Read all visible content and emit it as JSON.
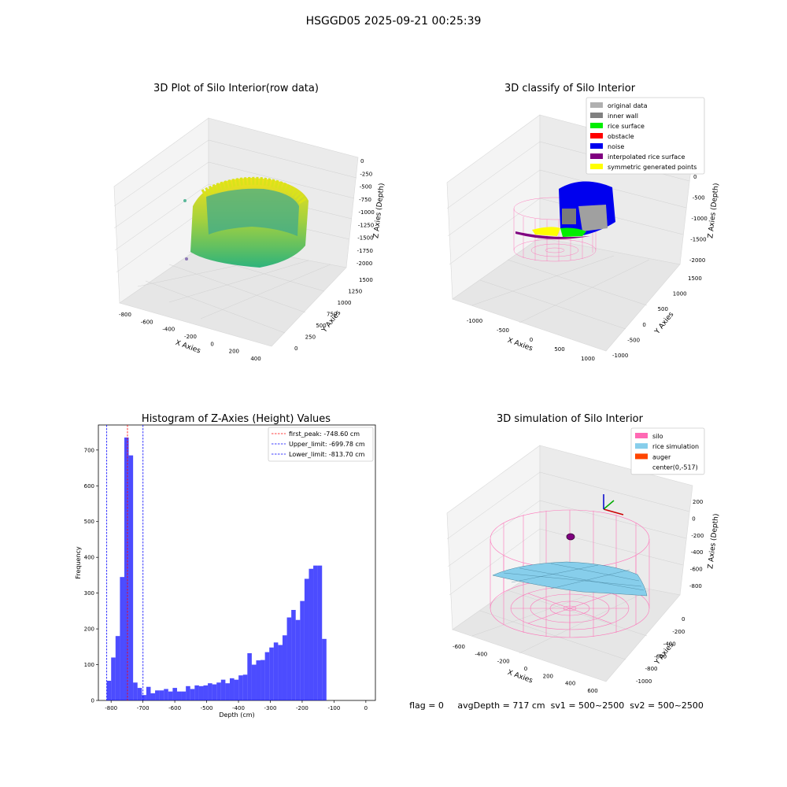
{
  "figure": {
    "suptitle": "HSGGD05 2025-09-21 00:25:39",
    "status_line": "flag = 0     avgDepth = 717 cm  sv1 = 500~2500  sv2 = 500~2500"
  },
  "panels": {
    "raw": {
      "title": "3D Plot of Silo Interior(row data)",
      "xlabel": "X Axies",
      "ylabel": "Y Axies",
      "zlabel": "Z Axies (Depth)",
      "xticks": [
        "-800",
        "-600",
        "-400",
        "-200",
        "0",
        "200",
        "400"
      ],
      "yticks": [
        "0",
        "250",
        "500",
        "750",
        "1000",
        "1250",
        "1500"
      ],
      "zticks": [
        "0",
        "-250",
        "-500",
        "-750",
        "-1000",
        "-1250",
        "-1500",
        "-1750",
        "-2000"
      ]
    },
    "classify": {
      "title": "3D classify of Silo Interior",
      "xlabel": "X Axies",
      "ylabel": "Y Axies",
      "zlabel": "Z Axies (Depth)",
      "xticks": [
        "-1000",
        "-500",
        "0",
        "500",
        "1000"
      ],
      "yticks": [
        "-1000",
        "-500",
        "0",
        "500",
        "1000",
        "1500"
      ],
      "zticks": [
        "0",
        "-500",
        "-1000",
        "-1500",
        "-2000"
      ],
      "legend": [
        {
          "label": "original data",
          "color": "#b0b0b0"
        },
        {
          "label": "inner wall",
          "color": "#808080"
        },
        {
          "label": "rice surface",
          "color": "#00ee00"
        },
        {
          "label": "obstacle",
          "color": "#ff0000"
        },
        {
          "label": "noise",
          "color": "#0000ee"
        },
        {
          "label": "interpolated rice surface",
          "color": "#800080"
        },
        {
          "label": "symmetric generated points",
          "color": "#ffff00"
        }
      ]
    },
    "simulation": {
      "title": "3D simulation of Silo Interior",
      "xlabel": "X Axies",
      "ylabel": "Y Axies",
      "zlabel": "Z Axies (Depth)",
      "xticks": [
        "-600",
        "-400",
        "-200",
        "0",
        "200",
        "400",
        "600"
      ],
      "yticks": [
        "-1000",
        "-800",
        "-600",
        "-400",
        "-200",
        "0"
      ],
      "zticks": [
        "200",
        "0",
        "-200",
        "-400",
        "-600",
        "-800"
      ],
      "legend": [
        {
          "label": "silo",
          "color": "#ff69b4"
        },
        {
          "label": "rice simulation",
          "color": "#87ceeb"
        },
        {
          "label": "auger",
          "color": "#ff4500"
        },
        {
          "label": "center(0,-517)",
          "color": ""
        }
      ]
    }
  },
  "chart_data": {
    "type": "bar",
    "title": "Histogram of Z-Axies (Height) Values",
    "xlabel": "Depth (cm)",
    "ylabel": "Frequency",
    "xlim": [
      -840,
      30
    ],
    "ylim": [
      0,
      770
    ],
    "xticks": [
      -800,
      -700,
      -600,
      -500,
      -400,
      -300,
      -200,
      -100,
      0
    ],
    "yticks": [
      0,
      100,
      200,
      300,
      400,
      500,
      600,
      700
    ],
    "bin_width": 13.8,
    "bin_start": -813.7,
    "values": [
      55,
      120,
      180,
      345,
      735,
      685,
      50,
      35,
      15,
      38,
      20,
      28,
      28,
      32,
      25,
      35,
      25,
      25,
      40,
      32,
      42,
      40,
      42,
      48,
      45,
      50,
      58,
      48,
      62,
      58,
      70,
      72,
      132,
      100,
      112,
      113,
      135,
      148,
      162,
      155,
      182,
      232,
      253,
      225,
      278,
      340,
      368,
      377,
      377,
      172
    ],
    "bar_color": "#0000ff",
    "reference_lines": [
      {
        "label": "first_peak: -748.60 cm",
        "x": -748.6,
        "color": "#ff0000"
      },
      {
        "label": "Upper_limit: -699.78 cm",
        "x": -699.78,
        "color": "#0000ff"
      },
      {
        "label": "Lower_limit: -813.70 cm",
        "x": -813.7,
        "color": "#0000ff"
      }
    ],
    "legend_position": "top-right",
    "grid": false
  }
}
